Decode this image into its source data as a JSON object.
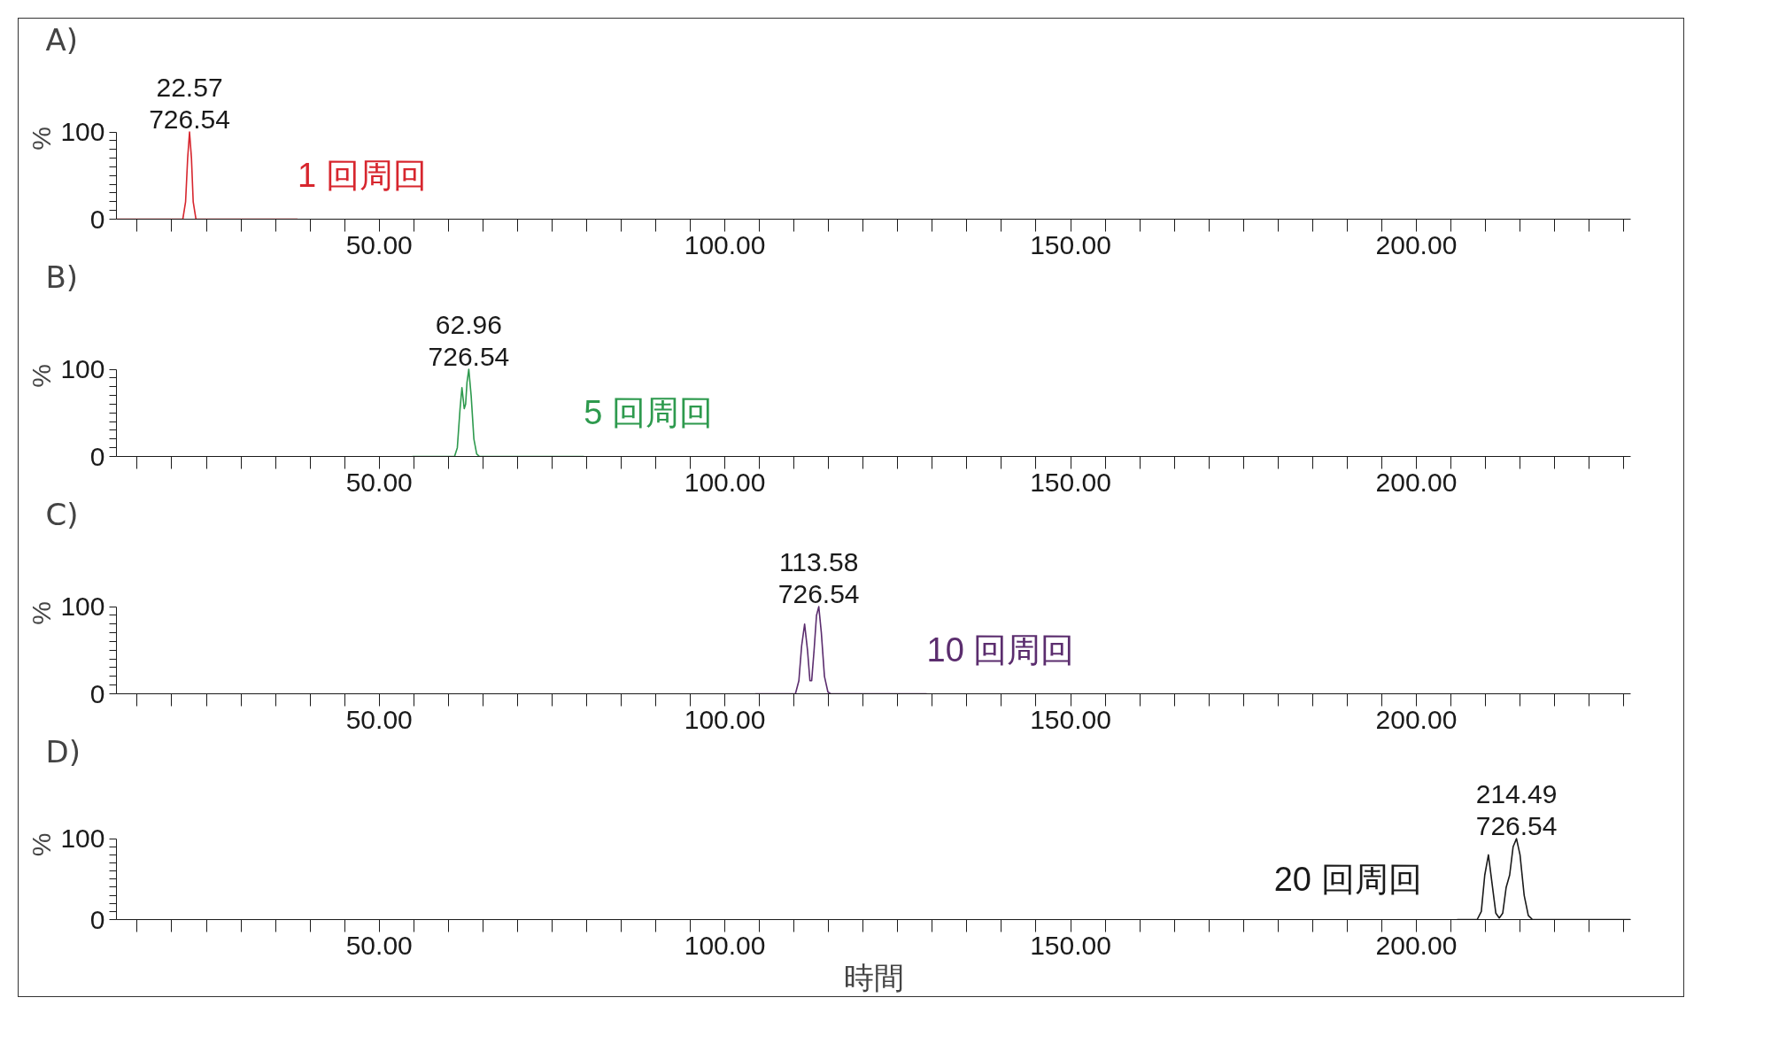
{
  "chart_data": [
    {
      "type": "line",
      "title": "A)",
      "ylabel": "%",
      "xlim": [
        12,
        231
      ],
      "ylim": [
        0,
        100
      ],
      "xticks": [
        {
          "value": 15,
          "label": null
        },
        {
          "value": 20,
          "label": null
        },
        {
          "value": 25,
          "label": null
        },
        {
          "value": 30,
          "label": null
        },
        {
          "value": 35,
          "label": null
        },
        {
          "value": 40,
          "label": null
        },
        {
          "value": 45,
          "label": null
        },
        {
          "value": 50,
          "label": "50.00"
        },
        {
          "value": 55,
          "label": null
        },
        {
          "value": 60,
          "label": null
        },
        {
          "value": 65,
          "label": null
        },
        {
          "value": 70,
          "label": null
        },
        {
          "value": 75,
          "label": null
        },
        {
          "value": 80,
          "label": null
        },
        {
          "value": 85,
          "label": null
        },
        {
          "value": 90,
          "label": null
        },
        {
          "value": 95,
          "label": null
        },
        {
          "value": 100,
          "label": "100.00"
        },
        {
          "value": 105,
          "label": null
        },
        {
          "value": 110,
          "label": null
        },
        {
          "value": 115,
          "label": null
        },
        {
          "value": 120,
          "label": null
        },
        {
          "value": 125,
          "label": null
        },
        {
          "value": 130,
          "label": null
        },
        {
          "value": 135,
          "label": null
        },
        {
          "value": 140,
          "label": null
        },
        {
          "value": 145,
          "label": null
        },
        {
          "value": 150,
          "label": "150.00"
        },
        {
          "value": 155,
          "label": null
        },
        {
          "value": 160,
          "label": null
        },
        {
          "value": 165,
          "label": null
        },
        {
          "value": 170,
          "label": null
        },
        {
          "value": 175,
          "label": null
        },
        {
          "value": 180,
          "label": null
        },
        {
          "value": 185,
          "label": null
        },
        {
          "value": 190,
          "label": null
        },
        {
          "value": 195,
          "label": null
        },
        {
          "value": 200,
          "label": "200.00"
        },
        {
          "value": 205,
          "label": null
        },
        {
          "value": 210,
          "label": null
        },
        {
          "value": 215,
          "label": null
        },
        {
          "value": 220,
          "label": null
        },
        {
          "value": 225,
          "label": null
        },
        {
          "value": 230,
          "label": null
        }
      ],
      "yticks": [
        0,
        {
          "value": 10,
          "label": null
        },
        {
          "value": 20,
          "label": null
        },
        {
          "value": 30,
          "label": null
        },
        {
          "value": 40,
          "label": null
        },
        {
          "value": 50,
          "label": null
        },
        {
          "value": 60,
          "label": null
        },
        {
          "value": 70,
          "label": null
        },
        {
          "value": 80,
          "label": null
        },
        {
          "value": 90,
          "label": null
        },
        100
      ],
      "series": [
        {
          "name": "1 回周回",
          "color": "#d7262e",
          "x": [
            12,
            21.6,
            22.0,
            22.3,
            22.57,
            22.85,
            23.1,
            23.5,
            38.2
          ],
          "values": [
            0,
            0,
            20,
            70,
            100,
            70,
            20,
            0,
            0
          ]
        }
      ],
      "annotations": [
        {
          "text": "22.57\n726.54",
          "x": 22.57,
          "y": 100
        }
      ]
    },
    {
      "type": "line",
      "title": "B)",
      "ylabel": "%",
      "xlim": [
        12,
        231
      ],
      "ylim": [
        0,
        100
      ],
      "xticks": [
        {
          "value": 15,
          "label": null
        },
        {
          "value": 20,
          "label": null
        },
        {
          "value": 25,
          "label": null
        },
        {
          "value": 30,
          "label": null
        },
        {
          "value": 35,
          "label": null
        },
        {
          "value": 40,
          "label": null
        },
        {
          "value": 45,
          "label": null
        },
        {
          "value": 50,
          "label": "50.00"
        },
        {
          "value": 55,
          "label": null
        },
        {
          "value": 60,
          "label": null
        },
        {
          "value": 65,
          "label": null
        },
        {
          "value": 70,
          "label": null
        },
        {
          "value": 75,
          "label": null
        },
        {
          "value": 80,
          "label": null
        },
        {
          "value": 85,
          "label": null
        },
        {
          "value": 90,
          "label": null
        },
        {
          "value": 95,
          "label": null
        },
        {
          "value": 100,
          "label": "100.00"
        },
        {
          "value": 105,
          "label": null
        },
        {
          "value": 110,
          "label": null
        },
        {
          "value": 115,
          "label": null
        },
        {
          "value": 120,
          "label": null
        },
        {
          "value": 125,
          "label": null
        },
        {
          "value": 130,
          "label": null
        },
        {
          "value": 135,
          "label": null
        },
        {
          "value": 140,
          "label": null
        },
        {
          "value": 145,
          "label": null
        },
        {
          "value": 150,
          "label": "150.00"
        },
        {
          "value": 155,
          "label": null
        },
        {
          "value": 160,
          "label": null
        },
        {
          "value": 165,
          "label": null
        },
        {
          "value": 170,
          "label": null
        },
        {
          "value": 175,
          "label": null
        },
        {
          "value": 180,
          "label": null
        },
        {
          "value": 185,
          "label": null
        },
        {
          "value": 190,
          "label": null
        },
        {
          "value": 195,
          "label": null
        },
        {
          "value": 200,
          "label": "200.00"
        },
        {
          "value": 205,
          "label": null
        },
        {
          "value": 210,
          "label": null
        },
        {
          "value": 215,
          "label": null
        },
        {
          "value": 220,
          "label": null
        },
        {
          "value": 225,
          "label": null
        },
        {
          "value": 230,
          "label": null
        }
      ],
      "yticks": [
        0,
        {
          "value": 10,
          "label": null
        },
        {
          "value": 20,
          "label": null
        },
        {
          "value": 30,
          "label": null
        },
        {
          "value": 40,
          "label": null
        },
        {
          "value": 50,
          "label": null
        },
        {
          "value": 60,
          "label": null
        },
        {
          "value": 70,
          "label": null
        },
        {
          "value": 80,
          "label": null
        },
        {
          "value": 90,
          "label": null
        },
        100
      ],
      "series": [
        {
          "name": "5 回周回",
          "color": "#2e9a4e",
          "x": [
            54.8,
            60.9,
            61.3,
            61.7,
            61.97,
            62.3,
            62.5,
            62.7,
            62.96,
            63.3,
            63.7,
            64.1,
            64.5,
            79.6
          ],
          "values": [
            0,
            0,
            10,
            55,
            79,
            55,
            60,
            85,
            100,
            70,
            20,
            3,
            0,
            0
          ]
        }
      ],
      "annotations": [
        {
          "text": "62.96\n726.54",
          "x": 62.96,
          "y": 100
        }
      ]
    },
    {
      "type": "line",
      "title": "C)",
      "ylabel": "%",
      "xlim": [
        12,
        231
      ],
      "ylim": [
        0,
        100
      ],
      "xticks": [
        {
          "value": 15,
          "label": null
        },
        {
          "value": 20,
          "label": null
        },
        {
          "value": 25,
          "label": null
        },
        {
          "value": 30,
          "label": null
        },
        {
          "value": 35,
          "label": null
        },
        {
          "value": 40,
          "label": null
        },
        {
          "value": 45,
          "label": null
        },
        {
          "value": 50,
          "label": "50.00"
        },
        {
          "value": 55,
          "label": null
        },
        {
          "value": 60,
          "label": null
        },
        {
          "value": 65,
          "label": null
        },
        {
          "value": 70,
          "label": null
        },
        {
          "value": 75,
          "label": null
        },
        {
          "value": 80,
          "label": null
        },
        {
          "value": 85,
          "label": null
        },
        {
          "value": 90,
          "label": null
        },
        {
          "value": 95,
          "label": null
        },
        {
          "value": 100,
          "label": "100.00"
        },
        {
          "value": 105,
          "label": null
        },
        {
          "value": 110,
          "label": null
        },
        {
          "value": 115,
          "label": null
        },
        {
          "value": 120,
          "label": null
        },
        {
          "value": 125,
          "label": null
        },
        {
          "value": 130,
          "label": null
        },
        {
          "value": 135,
          "label": null
        },
        {
          "value": 140,
          "label": null
        },
        {
          "value": 145,
          "label": null
        },
        {
          "value": 150,
          "label": "150.00"
        },
        {
          "value": 155,
          "label": null
        },
        {
          "value": 160,
          "label": null
        },
        {
          "value": 165,
          "label": null
        },
        {
          "value": 170,
          "label": null
        },
        {
          "value": 175,
          "label": null
        },
        {
          "value": 180,
          "label": null
        },
        {
          "value": 185,
          "label": null
        },
        {
          "value": 190,
          "label": null
        },
        {
          "value": 195,
          "label": null
        },
        {
          "value": 200,
          "label": "200.00"
        },
        {
          "value": 205,
          "label": null
        },
        {
          "value": 210,
          "label": null
        },
        {
          "value": 215,
          "label": null
        },
        {
          "value": 220,
          "label": null
        },
        {
          "value": 225,
          "label": null
        },
        {
          "value": 230,
          "label": null
        }
      ],
      "yticks": [
        0,
        {
          "value": 10,
          "label": null
        },
        {
          "value": 20,
          "label": null
        },
        {
          "value": 30,
          "label": null
        },
        {
          "value": 40,
          "label": null
        },
        {
          "value": 50,
          "label": null
        },
        {
          "value": 60,
          "label": null
        },
        {
          "value": 70,
          "label": null
        },
        {
          "value": 80,
          "label": null
        },
        {
          "value": 90,
          "label": null
        },
        100
      ],
      "series": [
        {
          "name": "10 回周回",
          "color": "#5b2d6e",
          "x": [
            104.4,
            110.2,
            110.7,
            111.1,
            111.53,
            111.95,
            112.3,
            112.55,
            112.9,
            113.25,
            113.58,
            113.95,
            114.4,
            114.9,
            115.3,
            129.2
          ],
          "values": [
            0,
            0,
            15,
            55,
            80,
            50,
            15,
            15,
            50,
            90,
            100,
            70,
            20,
            2,
            0,
            0
          ]
        }
      ],
      "annotations": [
        {
          "text": "113.58\n726.54",
          "x": 113.58,
          "y": 100
        }
      ]
    },
    {
      "type": "line",
      "title": "D)",
      "ylabel": "%",
      "xlabel": "時間",
      "xlim": [
        12,
        231
      ],
      "ylim": [
        0,
        100
      ],
      "xticks": [
        {
          "value": 15,
          "label": null
        },
        {
          "value": 20,
          "label": null
        },
        {
          "value": 25,
          "label": null
        },
        {
          "value": 30,
          "label": null
        },
        {
          "value": 35,
          "label": null
        },
        {
          "value": 40,
          "label": null
        },
        {
          "value": 45,
          "label": null
        },
        {
          "value": 50,
          "label": "50.00"
        },
        {
          "value": 55,
          "label": null
        },
        {
          "value": 60,
          "label": null
        },
        {
          "value": 65,
          "label": null
        },
        {
          "value": 70,
          "label": null
        },
        {
          "value": 75,
          "label": null
        },
        {
          "value": 80,
          "label": null
        },
        {
          "value": 85,
          "label": null
        },
        {
          "value": 90,
          "label": null
        },
        {
          "value": 95,
          "label": null
        },
        {
          "value": 100,
          "label": "100.00"
        },
        {
          "value": 105,
          "label": null
        },
        {
          "value": 110,
          "label": null
        },
        {
          "value": 115,
          "label": null
        },
        {
          "value": 120,
          "label": null
        },
        {
          "value": 125,
          "label": null
        },
        {
          "value": 130,
          "label": null
        },
        {
          "value": 135,
          "label": null
        },
        {
          "value": 140,
          "label": null
        },
        {
          "value": 145,
          "label": null
        },
        {
          "value": 150,
          "label": "150.00"
        },
        {
          "value": 155,
          "label": null
        },
        {
          "value": 160,
          "label": null
        },
        {
          "value": 165,
          "label": null
        },
        {
          "value": 170,
          "label": null
        },
        {
          "value": 175,
          "label": null
        },
        {
          "value": 180,
          "label": null
        },
        {
          "value": 185,
          "label": null
        },
        {
          "value": 190,
          "label": null
        },
        {
          "value": 195,
          "label": null
        },
        {
          "value": 200,
          "label": "200.00"
        },
        {
          "value": 205,
          "label": null
        },
        {
          "value": 210,
          "label": null
        },
        {
          "value": 215,
          "label": null
        },
        {
          "value": 220,
          "label": null
        },
        {
          "value": 225,
          "label": null
        },
        {
          "value": 230,
          "label": null
        }
      ],
      "yticks": [
        0,
        {
          "value": 10,
          "label": null
        },
        {
          "value": 20,
          "label": null
        },
        {
          "value": 30,
          "label": null
        },
        {
          "value": 40,
          "label": null
        },
        {
          "value": 50,
          "label": null
        },
        {
          "value": 60,
          "label": null
        },
        {
          "value": 70,
          "label": null
        },
        {
          "value": 80,
          "label": null
        },
        {
          "value": 90,
          "label": null
        },
        100
      ],
      "series": [
        {
          "name": "20 回周回",
          "color": "#1a1a1a",
          "x": [
            205.9,
            208.8,
            209.4,
            209.9,
            210.43,
            210.95,
            211.5,
            212.0,
            212.5,
            213.0,
            213.5,
            214.0,
            214.49,
            215.0,
            215.6,
            216.2,
            216.8,
            231
          ],
          "values": [
            0,
            0,
            10,
            55,
            80,
            45,
            8,
            2,
            8,
            40,
            55,
            90,
            100,
            80,
            30,
            5,
            0,
            0
          ]
        }
      ],
      "annotations": [
        {
          "text": "214.49\n726.54",
          "x": 214.49,
          "y": 100
        }
      ]
    }
  ]
}
